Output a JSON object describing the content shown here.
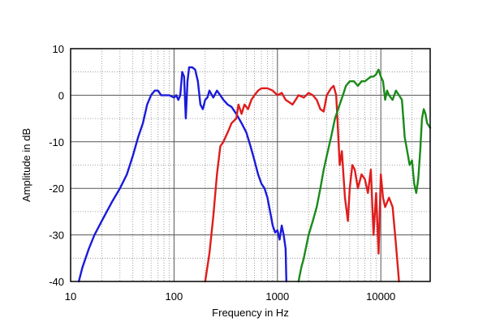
{
  "chart_data": {
    "type": "line",
    "xlabel": "Frequency  in Hz",
    "ylabel": "Amplitude in dB",
    "x_scale": "log",
    "xlim": [
      10,
      30000
    ],
    "ylim": [
      -40,
      10
    ],
    "grid": true,
    "x_tick_labels": [
      {
        "value": 10,
        "label": "10"
      },
      {
        "value": 100,
        "label": "100"
      },
      {
        "value": 1000,
        "label": "1000"
      },
      {
        "value": 10000,
        "label": "10000"
      }
    ],
    "y_tick_labels": [
      {
        "value": 10,
        "label": "10"
      },
      {
        "value": 0,
        "label": "0"
      },
      {
        "value": -10,
        "label": "-10"
      },
      {
        "value": -20,
        "label": "-20"
      },
      {
        "value": -30,
        "label": "-30"
      },
      {
        "value": -40,
        "label": "-40"
      }
    ],
    "series": [
      {
        "color": "#1a1adc",
        "points": [
          [
            12,
            -40
          ],
          [
            13,
            -37
          ],
          [
            15,
            -33
          ],
          [
            17,
            -30
          ],
          [
            20,
            -27
          ],
          [
            25,
            -23
          ],
          [
            30,
            -20
          ],
          [
            35,
            -17
          ],
          [
            40,
            -13
          ],
          [
            45,
            -9
          ],
          [
            50,
            -6
          ],
          [
            55,
            -2
          ],
          [
            60,
            0
          ],
          [
            65,
            1
          ],
          [
            70,
            1
          ],
          [
            75,
            0
          ],
          [
            80,
            0
          ],
          [
            90,
            0
          ],
          [
            100,
            -0.5
          ],
          [
            105,
            0
          ],
          [
            110,
            -1
          ],
          [
            115,
            0
          ],
          [
            120,
            5
          ],
          [
            125,
            4
          ],
          [
            130,
            -5
          ],
          [
            135,
            3
          ],
          [
            140,
            6
          ],
          [
            150,
            6
          ],
          [
            160,
            5.5
          ],
          [
            170,
            3
          ],
          [
            180,
            -2
          ],
          [
            190,
            -3
          ],
          [
            200,
            -1
          ],
          [
            210,
            -0.5
          ],
          [
            220,
            1
          ],
          [
            240,
            -0.5
          ],
          [
            260,
            1
          ],
          [
            280,
            0
          ],
          [
            300,
            -1
          ],
          [
            330,
            -2
          ],
          [
            360,
            -2.5
          ],
          [
            400,
            -4
          ],
          [
            450,
            -6
          ],
          [
            500,
            -8
          ],
          [
            550,
            -11
          ],
          [
            600,
            -14
          ],
          [
            650,
            -17
          ],
          [
            700,
            -19
          ],
          [
            750,
            -20
          ],
          [
            800,
            -22
          ],
          [
            850,
            -25
          ],
          [
            900,
            -28
          ],
          [
            950,
            -29.5
          ],
          [
            1000,
            -29
          ],
          [
            1050,
            -31
          ],
          [
            1100,
            -28
          ],
          [
            1150,
            -30
          ],
          [
            1200,
            -33
          ],
          [
            1220,
            -40
          ]
        ]
      },
      {
        "color": "#e01c1c",
        "points": [
          [
            200,
            -40
          ],
          [
            220,
            -34
          ],
          [
            240,
            -26
          ],
          [
            260,
            -17
          ],
          [
            280,
            -11
          ],
          [
            300,
            -10
          ],
          [
            330,
            -8
          ],
          [
            360,
            -6
          ],
          [
            400,
            -5
          ],
          [
            420,
            -2
          ],
          [
            450,
            -4
          ],
          [
            480,
            -2
          ],
          [
            520,
            -3
          ],
          [
            560,
            -1
          ],
          [
            600,
            0
          ],
          [
            650,
            1
          ],
          [
            700,
            1.5
          ],
          [
            800,
            1.5
          ],
          [
            900,
            1
          ],
          [
            1000,
            0
          ],
          [
            1100,
            0.5
          ],
          [
            1200,
            -1
          ],
          [
            1300,
            -1.5
          ],
          [
            1400,
            -2
          ],
          [
            1500,
            -1
          ],
          [
            1600,
            0
          ],
          [
            1800,
            -0.5
          ],
          [
            2000,
            0.5
          ],
          [
            2200,
            0
          ],
          [
            2400,
            -1
          ],
          [
            2600,
            -3
          ],
          [
            2800,
            -3.5
          ],
          [
            3000,
            0
          ],
          [
            3300,
            1.5
          ],
          [
            3500,
            2
          ],
          [
            3700,
            0
          ],
          [
            3800,
            -5
          ],
          [
            4000,
            -15
          ],
          [
            4200,
            -12
          ],
          [
            4500,
            -22
          ],
          [
            4800,
            -27
          ],
          [
            5000,
            -20
          ],
          [
            5300,
            -15
          ],
          [
            5600,
            -16
          ],
          [
            6000,
            -20
          ],
          [
            6500,
            -17
          ],
          [
            7000,
            -18
          ],
          [
            7500,
            -21
          ],
          [
            8000,
            -16
          ],
          [
            8500,
            -30
          ],
          [
            9000,
            -21
          ],
          [
            9500,
            -34
          ],
          [
            10000,
            -17
          ],
          [
            10500,
            -22
          ],
          [
            11000,
            -24
          ],
          [
            12000,
            -22
          ],
          [
            13000,
            -24
          ],
          [
            14000,
            -32
          ],
          [
            15000,
            -40
          ]
        ]
      },
      {
        "color": "#1a8a1a",
        "points": [
          [
            1600,
            -40
          ],
          [
            1700,
            -37
          ],
          [
            1800,
            -35
          ],
          [
            2000,
            -30
          ],
          [
            2200,
            -27
          ],
          [
            2400,
            -24
          ],
          [
            2600,
            -20
          ],
          [
            2800,
            -16
          ],
          [
            3000,
            -13
          ],
          [
            3300,
            -9
          ],
          [
            3600,
            -5
          ],
          [
            4000,
            -2
          ],
          [
            4300,
            0
          ],
          [
            4600,
            2
          ],
          [
            5000,
            3
          ],
          [
            5500,
            3
          ],
          [
            6000,
            2
          ],
          [
            6500,
            3
          ],
          [
            7000,
            3
          ],
          [
            7500,
            3.5
          ],
          [
            8000,
            4
          ],
          [
            8500,
            4
          ],
          [
            9000,
            4.5
          ],
          [
            9500,
            5.5
          ],
          [
            10000,
            4
          ],
          [
            10500,
            3
          ],
          [
            11000,
            -1
          ],
          [
            11500,
            1
          ],
          [
            12000,
            0
          ],
          [
            13000,
            -1
          ],
          [
            14000,
            1
          ],
          [
            15000,
            0
          ],
          [
            16000,
            -1
          ],
          [
            17000,
            -9
          ],
          [
            18000,
            -12
          ],
          [
            19000,
            -15
          ],
          [
            20000,
            -14
          ],
          [
            21000,
            -19
          ],
          [
            22000,
            -21
          ],
          [
            23000,
            -18
          ],
          [
            24000,
            -12
          ],
          [
            25000,
            -5
          ],
          [
            26000,
            -3
          ],
          [
            27000,
            -4
          ],
          [
            28000,
            -6
          ],
          [
            30000,
            -7
          ]
        ]
      }
    ]
  }
}
